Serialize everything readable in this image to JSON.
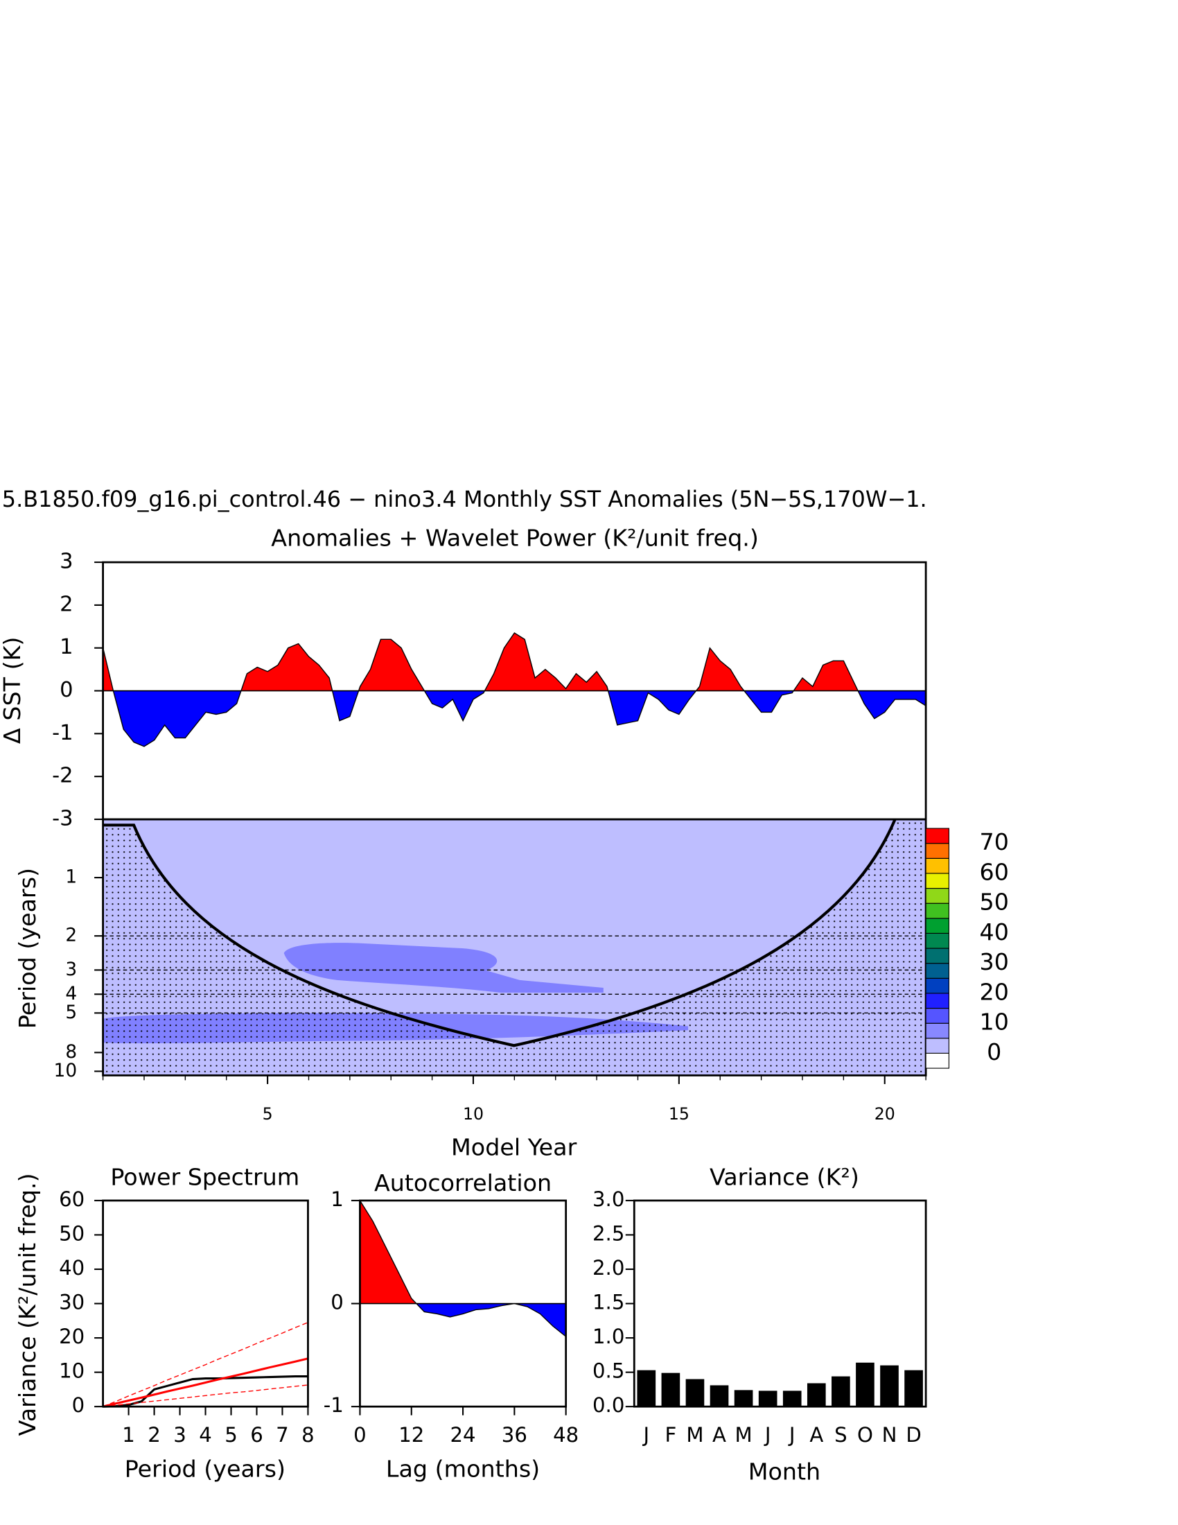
{
  "chart_data": [
    {
      "type": "area",
      "title": "5.B1850.f09_g16.pi_control.46 − nino3.4 Monthly SST Anomalies (5N−5S,170W−1.",
      "subtitle": "Anomalies + Wavelet Power (K²/unit freq.)",
      "ylabel": "Δ SST (K)",
      "x": [
        1,
        1.25,
        1.5,
        1.75,
        2,
        2.25,
        2.5,
        2.75,
        3,
        3.25,
        3.5,
        3.75,
        4,
        4.25,
        4.5,
        4.75,
        5,
        5.25,
        5.5,
        5.75,
        6,
        6.25,
        6.5,
        6.75,
        7,
        7.25,
        7.5,
        7.75,
        8,
        8.25,
        8.5,
        8.75,
        9,
        9.25,
        9.5,
        9.75,
        10,
        10.25,
        10.5,
        10.75,
        11,
        11.25,
        11.5,
        11.75,
        12,
        12.25,
        12.5,
        12.75,
        13,
        13.25,
        13.5,
        13.75,
        14,
        14.25,
        14.5,
        14.75,
        15,
        15.25,
        15.5,
        15.75,
        16,
        16.25,
        16.5,
        16.75,
        17,
        17.25,
        17.5,
        17.75,
        18,
        18.25,
        18.5,
        18.75,
        19,
        19.25,
        19.5,
        19.75,
        20,
        20.25,
        20.5,
        20.75,
        21
      ],
      "values": [
        1.0,
        0.0,
        -0.9,
        -1.2,
        -1.3,
        -1.15,
        -0.8,
        -1.1,
        -1.1,
        -0.8,
        -0.5,
        -0.55,
        -0.5,
        -0.3,
        0.4,
        0.55,
        0.45,
        0.6,
        1.0,
        1.1,
        0.8,
        0.6,
        0.3,
        -0.7,
        -0.6,
        0.1,
        0.5,
        1.2,
        1.2,
        1.0,
        0.5,
        0.1,
        -0.3,
        -0.4,
        -0.2,
        -0.7,
        -0.2,
        -0.05,
        0.4,
        1.0,
        1.35,
        1.2,
        0.3,
        0.5,
        0.3,
        0.05,
        0.4,
        0.2,
        0.45,
        0.1,
        -0.8,
        -0.75,
        -0.7,
        -0.05,
        -0.2,
        -0.45,
        -0.55,
        -0.2,
        0.1,
        1.0,
        0.7,
        0.5,
        0.1,
        -0.2,
        -0.5,
        -0.5,
        -0.1,
        -0.05,
        0.3,
        0.1,
        0.6,
        0.7,
        0.7,
        0.2,
        -0.3,
        -0.65,
        -0.5,
        -0.2,
        -0.2,
        -0.2,
        -0.35
      ],
      "xlim": [
        1,
        21
      ],
      "ylim": [
        -3,
        3
      ],
      "yticks": [
        -3,
        -2,
        -1,
        0,
        1,
        2,
        3
      ],
      "colors": {
        "positive": "#ff0000",
        "negative": "#0000ff"
      }
    },
    {
      "type": "contour",
      "ylabel": "Period (years)",
      "xlabel": "Model Year",
      "xlim": [
        1,
        21
      ],
      "xticks": [
        5,
        10,
        15,
        20
      ],
      "ylim": [
        0.5,
        10.5
      ],
      "yticks": [
        1,
        2,
        3,
        4,
        5,
        8,
        10
      ],
      "log_y": true,
      "inverted_y": true,
      "dashed_lines": [
        2,
        3,
        4,
        5
      ],
      "background": "#bebeff",
      "features": "#8080ff",
      "colorbar": {
        "levels": [
          0,
          5,
          10,
          15,
          20,
          25,
          30,
          35,
          40,
          45,
          50,
          55,
          60,
          65,
          70
        ],
        "ticks": [
          0,
          10,
          20,
          30,
          40,
          50,
          60,
          70
        ],
        "colors": [
          "#ffffff",
          "#bebeff",
          "#8888ff",
          "#5555ff",
          "#2020ff",
          "#0040c0",
          "#006090",
          "#007070",
          "#008850",
          "#00a030",
          "#40c020",
          "#90d818",
          "#e8f000",
          "#ffc000",
          "#ff7000",
          "#ff0000"
        ]
      }
    },
    {
      "type": "line",
      "title": "Power Spectrum",
      "xlabel": "Period (years)",
      "ylabel": "Variance (K²/unit freq.)",
      "x": [
        0,
        0.5,
        1,
        1.5,
        2,
        2.5,
        3,
        3.5,
        4,
        4.5,
        5,
        5.5,
        6,
        6.5,
        7,
        7.5,
        8
      ],
      "xlim": [
        0,
        8
      ],
      "xticks": [
        1,
        2,
        3,
        4,
        5,
        6,
        7,
        8
      ],
      "ylim": [
        0,
        60
      ],
      "yticks": [
        0,
        10,
        20,
        30,
        40,
        50,
        60
      ],
      "series": [
        {
          "color": "#000000",
          "values": [
            0,
            0.1,
            0.5,
            1.5,
            5.0,
            6.0,
            7.0,
            8.0,
            8.2,
            8.2,
            8.3,
            8.4,
            8.5,
            8.6,
            8.7,
            8.8,
            8.8
          ]
        },
        {
          "color": "#ff0000",
          "values": [
            0,
            0.9,
            1.75,
            2.6,
            3.5,
            4.4,
            5.25,
            6.1,
            7,
            7.9,
            8.75,
            9.6,
            10.5,
            11.4,
            12.25,
            13.1,
            14
          ]
        },
        {
          "color": "#ff0000",
          "dash": true,
          "values": [
            0,
            1.5,
            3.1,
            4.6,
            6.1,
            7.7,
            9.2,
            10.7,
            12.2,
            13.8,
            15.3,
            16.8,
            18.4,
            19.9,
            21.4,
            23.0,
            24.5
          ]
        },
        {
          "color": "#ff0000",
          "dash": true,
          "values": [
            0,
            0.4,
            0.8,
            1.2,
            1.6,
            2.0,
            2.4,
            2.8,
            3.2,
            3.6,
            4.0,
            4.3,
            4.7,
            5.1,
            5.5,
            5.9,
            6.3
          ]
        }
      ]
    },
    {
      "type": "area",
      "title": "Autocorrelation",
      "xlabel": "Lag (months)",
      "x": [
        0,
        3,
        6,
        9,
        12,
        15,
        18,
        21,
        24,
        27,
        30,
        33,
        36,
        39,
        42,
        45,
        48
      ],
      "values": [
        1.0,
        0.8,
        0.55,
        0.3,
        0.05,
        -0.08,
        -0.1,
        -0.13,
        -0.1,
        -0.06,
        -0.05,
        -0.02,
        0.0,
        -0.03,
        -0.1,
        -0.22,
        -0.32
      ],
      "xlim": [
        0,
        48
      ],
      "xticks": [
        0,
        12,
        24,
        36,
        48
      ],
      "ylim": [
        -1,
        1
      ],
      "yticks": [
        -1,
        0,
        1
      ],
      "colors": {
        "positive": "#ff0000",
        "negative": "#0000ff"
      }
    },
    {
      "type": "bar",
      "title": "Variance (K²)",
      "xlabel": "Month",
      "categories": [
        "J",
        "F",
        "M",
        "A",
        "M",
        "J",
        "J",
        "A",
        "S",
        "O",
        "N",
        "D"
      ],
      "values": [
        0.53,
        0.49,
        0.4,
        0.31,
        0.24,
        0.23,
        0.23,
        0.34,
        0.44,
        0.64,
        0.6,
        0.53
      ],
      "color": "#000000",
      "ylim": [
        0,
        3
      ],
      "yticks": [
        {
          "value": 0,
          "label": "0.0"
        },
        0.5,
        {
          "value": 1,
          "label": "1.0"
        },
        1.5,
        {
          "value": 2,
          "label": "2.0"
        },
        2.5,
        {
          "value": 3,
          "label": "3.0"
        }
      ]
    }
  ]
}
